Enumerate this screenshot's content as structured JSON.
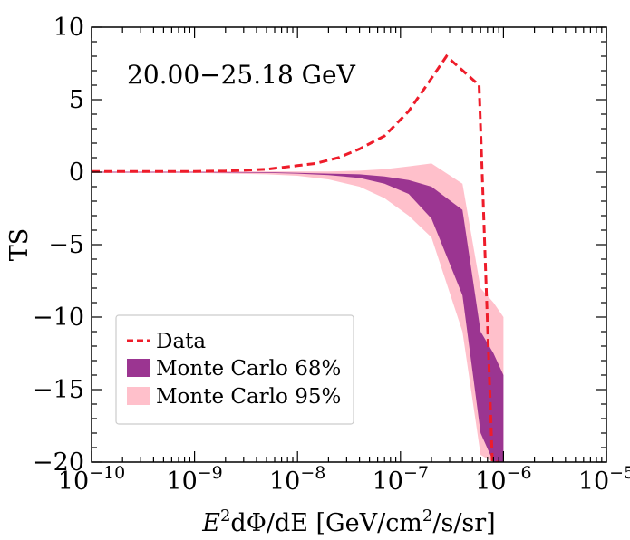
{
  "chart_data": {
    "type": "area",
    "annotation": "20.00−25.18 GeV",
    "xlabel": {
      "prefix_italic": "E",
      "sup": "2",
      "mid": "dΦ/dE [GeV/cm",
      "sup2": "2",
      "suffix": "/s/sr]"
    },
    "ylabel": "TS",
    "x_scale": "log",
    "xlim": [
      1e-10,
      1e-05
    ],
    "ylim": [
      -20,
      10
    ],
    "x_ticks": [
      {
        "value": 1e-10,
        "base": "10",
        "exp": "−10"
      },
      {
        "value": 1e-09,
        "base": "10",
        "exp": "−9"
      },
      {
        "value": 1e-08,
        "base": "10",
        "exp": "−8"
      },
      {
        "value": 1e-07,
        "base": "10",
        "exp": "−7"
      },
      {
        "value": 1e-06,
        "base": "10",
        "exp": "−6"
      },
      {
        "value": 1e-05,
        "base": "10",
        "exp": "−5"
      }
    ],
    "y_ticks": [
      {
        "value": 10,
        "label": "10"
      },
      {
        "value": 5,
        "label": "5"
      },
      {
        "value": 0,
        "label": "0"
      },
      {
        "value": -5,
        "label": "−5"
      },
      {
        "value": -10,
        "label": "−10"
      },
      {
        "value": -15,
        "label": "−15"
      },
      {
        "value": -20,
        "label": "−20"
      }
    ],
    "series": [
      {
        "name": "Data",
        "style": "dashed",
        "color": "#ee1c2a",
        "x": [
          1e-10,
          2e-10,
          5e-10,
          1e-09,
          2e-09,
          5e-09,
          1e-08,
          1.5e-08,
          2.5e-08,
          4e-08,
          7e-08,
          1.2e-07,
          1.8e-07,
          2.8e-07,
          5.8e-07,
          7.8e-07,
          9e-07
        ],
        "y": [
          0.05,
          0.05,
          0.05,
          0.05,
          0.08,
          0.2,
          0.45,
          0.6,
          1.0,
          1.6,
          2.5,
          4.2,
          6.0,
          8.0,
          6.0,
          -20,
          -20
        ]
      },
      {
        "name": "Monte Carlo 95%",
        "type": "band",
        "color": "#ffc0cb",
        "x": [
          1e-10,
          1e-09,
          5e-09,
          1e-08,
          2e-08,
          4e-08,
          7e-08,
          1.2e-07,
          2e-07,
          4e-07,
          6e-07,
          8e-07,
          1e-06
        ],
        "upper": [
          0.05,
          0.05,
          0.05,
          0.05,
          0.05,
          0.1,
          0.2,
          0.4,
          0.6,
          -0.8,
          -8.0,
          -9.0,
          -10.0
        ],
        "lower": [
          -0.05,
          -0.05,
          -0.15,
          -0.25,
          -0.5,
          -1.0,
          -1.8,
          -3.0,
          -4.5,
          -11.0,
          -19.5,
          -20,
          -20
        ]
      },
      {
        "name": "Monte Carlo 68%",
        "type": "band",
        "color": "#9b3591",
        "x": [
          1e-10,
          1e-09,
          5e-09,
          1e-08,
          2e-08,
          4e-08,
          7e-08,
          1.2e-07,
          2e-07,
          4e-07,
          6e-07,
          8e-07,
          1e-06
        ],
        "upper": [
          0.02,
          0.02,
          0.0,
          -0.05,
          -0.1,
          -0.15,
          -0.3,
          -0.55,
          -1.0,
          -2.6,
          -11.0,
          -12.5,
          -14.0
        ],
        "lower": [
          -0.02,
          -0.02,
          -0.05,
          -0.1,
          -0.2,
          -0.4,
          -0.8,
          -1.5,
          -3.2,
          -8.5,
          -18.0,
          -20,
          -20
        ]
      }
    ],
    "legend": {
      "placement": "lower-left",
      "entries": [
        {
          "label": "Data",
          "kind": "dashed-line",
          "color": "#ee1c2a"
        },
        {
          "label": "Monte Carlo 68%",
          "kind": "patch",
          "color": "#9b3591"
        },
        {
          "label": "Monte Carlo 95%",
          "kind": "patch",
          "color": "#ffc0cb"
        }
      ]
    },
    "grid": false
  }
}
